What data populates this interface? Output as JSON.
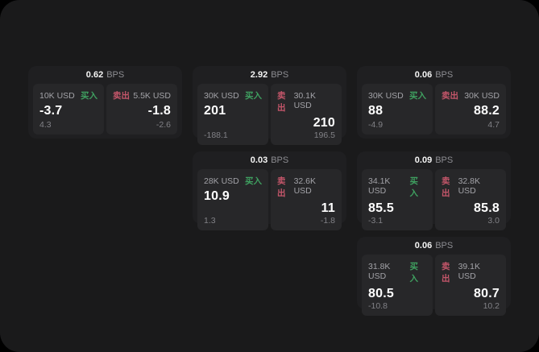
{
  "labels": {
    "bps": "BPS",
    "buy": "买入",
    "sell": "卖出"
  },
  "colors": {
    "page_bg": "#1a1a1b",
    "card_bg": "#1f1f21",
    "panel_bg": "#272729",
    "buy_green": "#3fa060",
    "sell_red": "#c4566a",
    "value_white": "#ffffff",
    "muted_gray": "#818186"
  },
  "cards": [
    {
      "bps": "0.62",
      "buy": {
        "amount": "10K USD",
        "value": "-3.7",
        "sub": "4.3"
      },
      "sell": {
        "amount": "5.5K USD",
        "value": "-1.8",
        "sub": "-2.6"
      }
    },
    {
      "bps": "2.92",
      "buy": {
        "amount": "30K USD",
        "value": "201",
        "sub": "-188.1"
      },
      "sell": {
        "amount": "30.1K USD",
        "value": "210",
        "sub": "196.5"
      }
    },
    {
      "bps": "0.06",
      "buy": {
        "amount": "30K USD",
        "value": "88",
        "sub": "-4.9"
      },
      "sell": {
        "amount": "30K USD",
        "value": "88.2",
        "sub": "4.7"
      }
    },
    {
      "bps": "0.03",
      "buy": {
        "amount": "28K USD",
        "value": "10.9",
        "sub": "1.3"
      },
      "sell": {
        "amount": "32.6K USD",
        "value": "11",
        "sub": "-1.8"
      }
    },
    {
      "bps": "0.09",
      "buy": {
        "amount": "34.1K USD",
        "value": "85.5",
        "sub": "-3.1"
      },
      "sell": {
        "amount": "32.8K USD",
        "value": "85.8",
        "sub": "3.0"
      }
    },
    {
      "bps": "0.06",
      "buy": {
        "amount": "31.8K USD",
        "value": "80.5",
        "sub": "-10.8"
      },
      "sell": {
        "amount": "39.1K USD",
        "value": "80.7",
        "sub": "10.2"
      }
    }
  ]
}
